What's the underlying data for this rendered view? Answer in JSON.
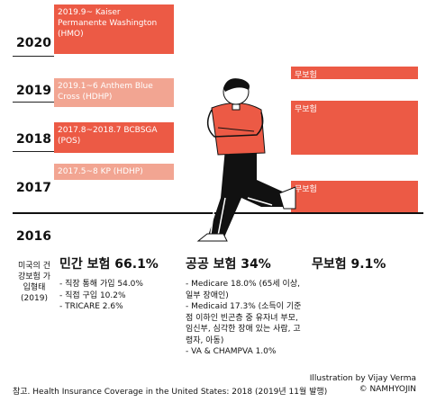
{
  "timeline": {
    "years": [
      "2020",
      "2019",
      "2018",
      "2017",
      "2016"
    ],
    "plans": [
      "2019.9~ Kaiser Permanente Washington (HMO)",
      "2019.1~6 Anthem Blue Cross (HDHP)",
      "2017.8~2018.7 BCBSGA (POS)",
      "2017.5~8 KP (HDHP)"
    ],
    "uninsured": [
      "무보험",
      "무보험",
      "무보험"
    ]
  },
  "summary": {
    "title": "미국의 건강보험 가입형태 (2019)",
    "columns": [
      {
        "heading": "민간 보험 66.1%",
        "items": [
          "- 직장 통해 가입 54.0%",
          "- 직접 구입 10.2%",
          "- TRICARE 2.6%"
        ]
      },
      {
        "heading": "공공 보험 34%",
        "items": [
          "- Medicare 18.0% (65세 이상, 일부 장애인)",
          "- Medicaid 17.3% (소득이 기준점 이하인 빈곤층 중 유자녀 부모, 임신부, 심각한 장애 있는 사람, 고령자, 아동)",
          "- VA & CHAMPVA 1.0%"
        ]
      },
      {
        "heading": "무보험 9.1%",
        "items": []
      }
    ]
  },
  "footer": {
    "source": "참고. Health Insurance Coverage in the United States: 2018 (2019년 11월 발행)",
    "credit": "Illustration by Vijay Verma",
    "copyright": "© NAMHYOJIN"
  }
}
